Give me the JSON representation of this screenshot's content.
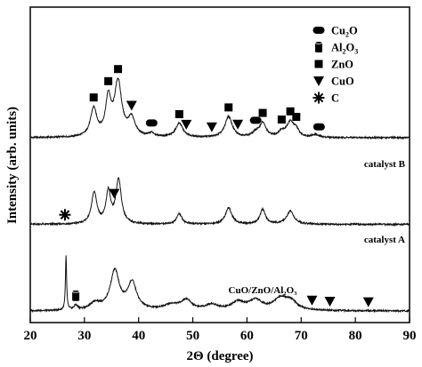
{
  "chart_data": {
    "type": "line",
    "title": "",
    "xlabel": "2Θ (degree)",
    "ylabel": "Intensity (arb. units)",
    "xlim": [
      20,
      90
    ],
    "xticks": [
      20,
      30,
      40,
      50,
      60,
      70,
      80,
      90
    ],
    "grid": false,
    "legend_position": "top-right",
    "legend": [
      {
        "marker": "rounded-rect",
        "label": "Cu2O"
      },
      {
        "marker": "cylinder",
        "label": "Al2O3"
      },
      {
        "marker": "square",
        "label": "ZnO"
      },
      {
        "marker": "triangle-down",
        "label": "CuO"
      },
      {
        "marker": "asterisk",
        "label": "C"
      }
    ],
    "series": [
      {
        "name": "catalyst B",
        "baseline": 10.0,
        "peaks": [
          [
            31.7,
            1.6,
            0.7
          ],
          [
            34.4,
            2.1,
            0.6
          ],
          [
            36.2,
            3.1,
            0.8
          ],
          [
            38.7,
            1.0,
            0.8
          ],
          [
            42.4,
            0.2,
            0.6
          ],
          [
            47.5,
            0.8,
            0.8
          ],
          [
            56.6,
            1.2,
            0.8
          ],
          [
            61.6,
            0.25,
            0.7
          ],
          [
            62.9,
            0.8,
            0.7
          ],
          [
            66.4,
            0.3,
            0.7
          ],
          [
            68.0,
            0.85,
            0.8
          ],
          [
            69.1,
            0.35,
            0.6
          ],
          [
            72.6,
            0.15,
            0.7
          ]
        ],
        "markers": [
          {
            "type": "ZnO",
            "x": 31.7
          },
          {
            "type": "ZnO",
            "x": 34.4
          },
          {
            "type": "ZnO",
            "x": 36.2
          },
          {
            "type": "CuO",
            "x": 38.7
          },
          {
            "type": "Cu2O",
            "x": 42.4
          },
          {
            "type": "ZnO",
            "x": 47.5
          },
          {
            "type": "CuO",
            "x": 48.8
          },
          {
            "type": "CuO",
            "x": 53.5
          },
          {
            "type": "ZnO",
            "x": 56.6
          },
          {
            "type": "CuO",
            "x": 58.3
          },
          {
            "type": "Cu2O",
            "x": 61.6
          },
          {
            "type": "ZnO",
            "x": 62.9
          },
          {
            "type": "ZnO",
            "x": 66.4
          },
          {
            "type": "ZnO",
            "x": 68.0
          },
          {
            "type": "ZnO",
            "x": 69.1
          },
          {
            "type": "Cu2O",
            "x": 73.3
          }
        ]
      },
      {
        "name": "catalyst A",
        "baseline": 5.0,
        "peaks": [
          [
            31.8,
            1.8,
            0.6
          ],
          [
            34.4,
            1.8,
            0.5
          ],
          [
            36.3,
            2.55,
            0.6
          ],
          [
            47.5,
            0.6,
            0.6
          ],
          [
            56.6,
            0.95,
            0.7
          ],
          [
            62.9,
            0.85,
            0.6
          ],
          [
            68.0,
            0.75,
            0.8
          ]
        ],
        "markers": [
          {
            "type": "C",
            "x": 26.4
          },
          {
            "type": "CuO",
            "x": 35.5
          }
        ]
      },
      {
        "name": "CuO/ZnO/Al₂O₃",
        "baseline": 0.0,
        "peaks": [
          [
            26.6,
            3.1,
            0.13
          ],
          [
            28.4,
            0.25,
            0.4
          ],
          [
            32.0,
            0.4,
            1.2
          ],
          [
            35.6,
            2.25,
            1.0
          ],
          [
            38.8,
            1.55,
            1.0
          ],
          [
            46.0,
            0.3,
            1.8
          ],
          [
            48.8,
            0.55,
            1.2
          ],
          [
            53.5,
            0.3,
            1.4
          ],
          [
            58.3,
            0.45,
            1.5
          ],
          [
            61.6,
            0.55,
            1.4
          ],
          [
            66.2,
            0.65,
            1.6
          ],
          [
            68.1,
            0.45,
            1.3
          ]
        ],
        "markers": [
          {
            "type": "Al2O3",
            "x": 28.4
          },
          {
            "type": "CuO",
            "x": 72.0
          },
          {
            "type": "CuO",
            "x": 75.3
          },
          {
            "type": "CuO",
            "x": 82.4
          }
        ]
      }
    ]
  }
}
